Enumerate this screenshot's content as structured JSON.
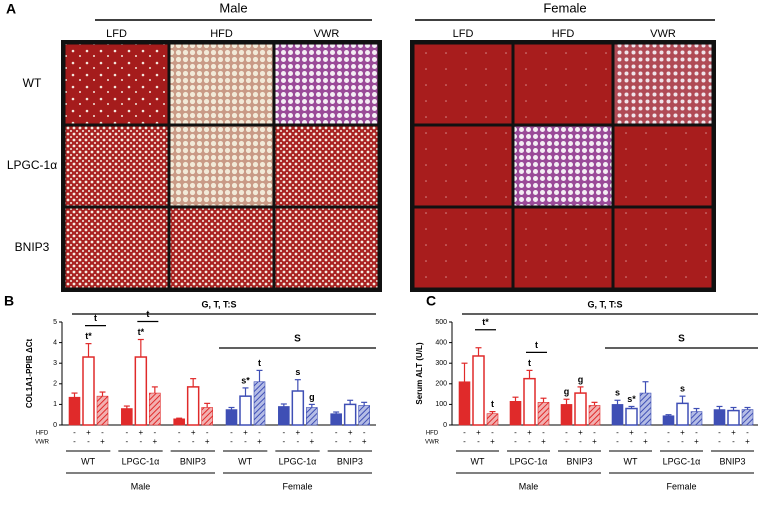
{
  "panel_a": {
    "label": "A",
    "sexes": [
      "Male",
      "Female"
    ],
    "columns": [
      "LFD",
      "HFD",
      "VWR"
    ],
    "rows": [
      "WT",
      "LPGC-1α",
      "BNIP3"
    ]
  },
  "chart_data": [
    {
      "type": "bar",
      "label": "B",
      "ylabel": "COL1A1-PPIB ΔCt",
      "ylim": [
        0,
        5
      ],
      "yticks": [
        0,
        1,
        2,
        3,
        4,
        5
      ],
      "colors": [
        "#e02a2a",
        "#3f4fb5"
      ],
      "values": [
        1.35,
        3.3,
        1.4,
        0.8,
        3.3,
        1.55,
        0.3,
        1.85,
        0.85,
        0.75,
        1.4,
        2.1,
        0.9,
        1.65,
        0.85,
        0.55,
        1.0,
        0.95
      ],
      "errors": [
        0.2,
        0.65,
        0.2,
        0.12,
        0.85,
        0.3,
        0.03,
        0.4,
        0.2,
        0.1,
        0.4,
        0.55,
        0.12,
        0.55,
        0.15,
        0.08,
        0.2,
        0.15
      ],
      "sig_labels": [
        null,
        "t*",
        null,
        null,
        "t*",
        null,
        null,
        null,
        null,
        null,
        "s*",
        "t",
        null,
        "s",
        "g",
        null,
        null,
        null
      ],
      "brackets": [
        {
          "text": "t",
          "span": [
            1,
            2
          ]
        },
        {
          "text": "t",
          "span": [
            4,
            5
          ]
        }
      ],
      "effects": "G, T, T:S",
      "sex_effect": "S",
      "row_labels": [
        "HFD",
        "VWR"
      ],
      "hfd": [
        "-",
        "+",
        "-",
        "-",
        "+",
        "-",
        "-",
        "+",
        "-",
        "-",
        "+",
        "-",
        "-",
        "+",
        "-",
        "-",
        "+",
        "-"
      ],
      "vwr": [
        "-",
        "-",
        "+",
        "-",
        "-",
        "+",
        "-",
        "-",
        "+",
        "-",
        "-",
        "+",
        "-",
        "-",
        "+",
        "-",
        "-",
        "+"
      ],
      "groups": [
        "WT",
        "LPGC-1α",
        "BNIP3",
        "WT",
        "LPGC-1α",
        "BNIP3"
      ],
      "sexes": [
        "Male",
        "Female"
      ]
    },
    {
      "type": "bar",
      "label": "C",
      "ylabel": "Serum ALT (U/L)",
      "ylim": [
        0,
        500
      ],
      "yticks": [
        0,
        100,
        200,
        300,
        400,
        500
      ],
      "colors": [
        "#e02a2a",
        "#3f4fb5"
      ],
      "values": [
        210,
        335,
        55,
        115,
        225,
        110,
        100,
        155,
        95,
        100,
        80,
        155,
        45,
        105,
        65,
        75,
        70,
        75
      ],
      "errors": [
        90,
        40,
        10,
        20,
        40,
        20,
        25,
        30,
        15,
        20,
        10,
        55,
        5,
        35,
        15,
        15,
        15,
        10
      ],
      "sig_labels": [
        null,
        null,
        "t",
        null,
        "t",
        null,
        "g",
        "g",
        null,
        "s",
        "s*",
        null,
        null,
        "s",
        null,
        null,
        null,
        null
      ],
      "brackets": [
        {
          "text": "t*",
          "span": [
            1,
            2
          ]
        },
        {
          "text": "t",
          "span": [
            4,
            5
          ]
        }
      ],
      "effects": "G, T, T:S",
      "sex_effect": "S",
      "row_labels": [
        "HFD",
        "VWR"
      ],
      "hfd": [
        "-",
        "+",
        "-",
        "-",
        "+",
        "-",
        "-",
        "+",
        "-",
        "-",
        "+",
        "-",
        "-",
        "+",
        "-",
        "-",
        "+",
        "-"
      ],
      "vwr": [
        "-",
        "-",
        "+",
        "-",
        "-",
        "+",
        "-",
        "-",
        "+",
        "-",
        "-",
        "+",
        "-",
        "-",
        "+",
        "-",
        "-",
        "+"
      ],
      "groups": [
        "WT",
        "LPGC-1α",
        "BNIP3",
        "WT",
        "LPGC-1α",
        "BNIP3"
      ],
      "sexes": [
        "Male",
        "Female"
      ]
    }
  ]
}
